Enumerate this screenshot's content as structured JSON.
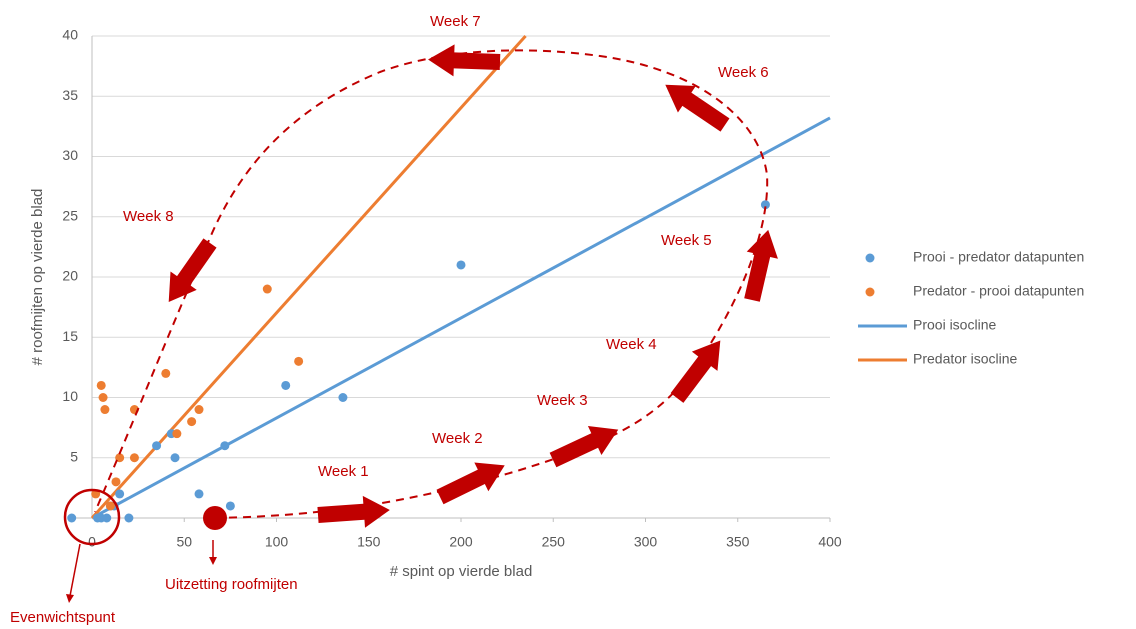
{
  "chart_data": {
    "type": "scatter",
    "xlabel": "# spint op vierde blad",
    "ylabel": "# roofmijten op vierde blad",
    "xlim": [
      0,
      400
    ],
    "ylim": [
      0,
      40
    ],
    "xticks": [
      0,
      50,
      100,
      150,
      200,
      250,
      300,
      350,
      400
    ],
    "yticks": [
      5,
      10,
      15,
      20,
      25,
      30,
      35,
      40
    ],
    "grid": true,
    "series": [
      {
        "name": "Prooi - predator datapunten",
        "mode": "markers",
        "color": "#5b9bd5",
        "x": [
          -11,
          3,
          5,
          8,
          10,
          12,
          15,
          20,
          35,
          43,
          45,
          58,
          72,
          75,
          105,
          136,
          200,
          365
        ],
        "values": [
          0,
          0,
          0,
          0,
          1,
          1,
          2,
          0,
          6,
          7,
          5,
          2,
          6,
          1,
          11,
          10,
          21,
          26
        ]
      },
      {
        "name": "Predator - prooi datapunten",
        "mode": "markers",
        "color": "#ed7d31",
        "x": [
          2,
          5,
          6,
          7,
          10,
          13,
          15,
          23,
          23,
          40,
          46,
          54,
          58,
          95,
          112
        ],
        "values": [
          2,
          11,
          10,
          9,
          1,
          3,
          5,
          9,
          5,
          12,
          7,
          8,
          9,
          19,
          13
        ]
      },
      {
        "name": "Prooi isocline",
        "mode": "line",
        "color": "#5b9bd5",
        "x": [
          0,
          400
        ],
        "values": [
          0,
          33.2
        ]
      },
      {
        "name": "Predator isocline",
        "mode": "line",
        "color": "#ed7d31",
        "x": [
          0,
          235
        ],
        "values": [
          0,
          40
        ]
      }
    ],
    "annotations": [
      "Week 1",
      "Week 2",
      "Week 3",
      "Week 4",
      "Week 5",
      "Week 6",
      "Week 7",
      "Week 8",
      "Evenwichtspunt",
      "Uitzetting roofmijten"
    ]
  }
}
